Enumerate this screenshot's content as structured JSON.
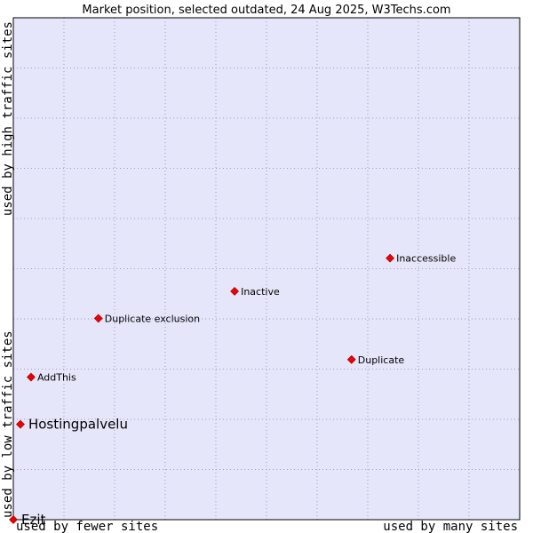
{
  "chart_data": {
    "type": "scatter",
    "title": "Market position, selected outdated, 24 Aug 2025, W3Techs.com",
    "x_label_left": "used by fewer sites",
    "x_label_right": "used by many sites",
    "y_label_bottom": "used by low traffic sites",
    "y_label_top": "used by high traffic sites",
    "xlim": [
      0,
      100
    ],
    "ylim": [
      0,
      100
    ],
    "grid": true,
    "plot_background": "#e6e6fa",
    "grid_color": "#9b9bc8",
    "marker_color": "#ee0000",
    "points": [
      {
        "label": "Inaccessible",
        "x": 74.4,
        "y": 52.1,
        "emphasis": false
      },
      {
        "label": "Inactive",
        "x": 43.7,
        "y": 45.5,
        "emphasis": false
      },
      {
        "label": "Duplicate exclusion",
        "x": 16.8,
        "y": 40.1,
        "emphasis": false
      },
      {
        "label": "Duplicate",
        "x": 66.8,
        "y": 31.9,
        "emphasis": false
      },
      {
        "label": "AddThis",
        "x": 3.5,
        "y": 28.4,
        "emphasis": false
      },
      {
        "label": "Hostingpalvelu",
        "x": 1.4,
        "y": 19.0,
        "emphasis": true
      },
      {
        "label": "Ezit",
        "x": 0,
        "y": 0,
        "emphasis": true
      }
    ]
  }
}
